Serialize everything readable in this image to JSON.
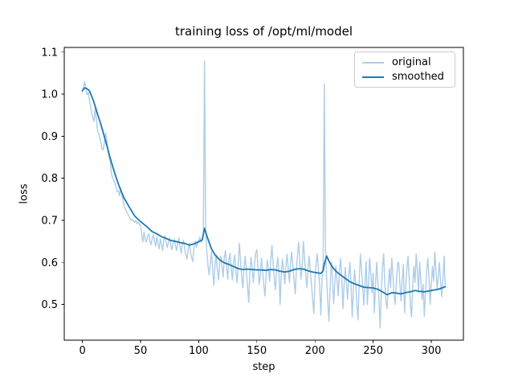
{
  "chart_data": {
    "type": "line",
    "title": "training loss of /opt/ml/model",
    "xlabel": "step",
    "ylabel": "loss",
    "xlim": [
      -15.6,
      327.6
    ],
    "ylim": [
      0.415,
      1.111
    ],
    "xticks": [
      0,
      50,
      100,
      150,
      200,
      250,
      300
    ],
    "xtick_labels": [
      "0",
      "50",
      "100",
      "150",
      "200",
      "250",
      "300"
    ],
    "yticks": [
      0.5,
      0.6,
      0.7,
      0.8,
      0.9,
      1.0,
      1.1
    ],
    "ytick_labels": [
      "0.5",
      "0.6",
      "0.7",
      "0.8",
      "0.9",
      "1.0",
      "1.1"
    ],
    "grid": false,
    "legend_position": "upper right",
    "background": "#ffffff",
    "spine_color": "#000000",
    "series": [
      {
        "name": "original",
        "color": "#aecde6",
        "line_width": 1.4,
        "x_start": 0,
        "x_step": 1,
        "y": [
          1.005,
          1.018,
          1.03,
          1.012,
          0.999,
          1.004,
          0.985,
          0.972,
          0.955,
          0.944,
          0.935,
          0.967,
          0.94,
          0.915,
          0.905,
          0.898,
          0.882,
          0.87,
          0.868,
          0.888,
          0.908,
          0.89,
          0.868,
          0.85,
          0.838,
          0.812,
          0.8,
          0.795,
          0.788,
          0.778,
          0.768,
          0.77,
          0.758,
          0.778,
          0.76,
          0.745,
          0.733,
          0.728,
          0.72,
          0.715,
          0.71,
          0.705,
          0.7,
          0.702,
          0.698,
          0.695,
          0.7,
          0.692,
          0.696,
          0.69,
          0.688,
          0.666,
          0.649,
          0.672,
          0.655,
          0.648,
          0.662,
          0.668,
          0.652,
          0.642,
          0.656,
          0.666,
          0.65,
          0.638,
          0.661,
          0.645,
          0.632,
          0.656,
          0.642,
          0.628,
          0.654,
          0.664,
          0.648,
          0.635,
          0.648,
          0.658,
          0.642,
          0.63,
          0.645,
          0.655,
          0.64,
          0.628,
          0.648,
          0.658,
          0.636,
          0.622,
          0.645,
          0.652,
          0.632,
          0.618,
          0.608,
          0.632,
          0.645,
          0.625,
          0.61,
          0.602,
          0.638,
          0.65,
          0.635,
          0.645,
          0.652,
          0.66,
          0.648,
          0.655,
          0.668,
          1.079,
          0.672,
          0.625,
          0.592,
          0.57,
          0.6,
          0.625,
          0.585,
          0.545,
          0.592,
          0.618,
          0.585,
          0.558,
          0.595,
          0.615,
          0.59,
          0.565,
          0.612,
          0.628,
          0.588,
          0.56,
          0.606,
          0.622,
          0.585,
          0.558,
          0.602,
          0.618,
          0.58,
          0.552,
          0.598,
          0.645,
          0.602,
          0.565,
          0.54,
          0.588,
          0.615,
          0.578,
          0.542,
          0.505,
          0.578,
          0.612,
          0.585,
          0.552,
          0.596,
          0.622,
          0.63,
          0.588,
          0.548,
          0.572,
          0.61,
          0.578,
          0.546,
          0.52,
          0.575,
          0.605,
          0.582,
          0.555,
          0.608,
          0.64,
          0.595,
          0.56,
          0.535,
          0.585,
          0.612,
          0.575,
          0.5,
          0.57,
          0.608,
          0.582,
          0.548,
          0.59,
          0.62,
          0.585,
          0.552,
          0.6,
          0.625,
          0.59,
          0.558,
          0.525,
          0.582,
          0.618,
          0.648,
          0.6,
          0.56,
          0.592,
          0.65,
          0.612,
          0.572,
          0.54,
          0.585,
          0.615,
          0.578,
          0.545,
          0.512,
          0.478,
          0.56,
          0.6,
          0.62,
          0.58,
          0.545,
          0.475,
          0.558,
          0.595,
          1.024,
          0.64,
          0.56,
          0.505,
          0.46,
          0.54,
          0.6,
          0.568,
          0.502,
          0.548,
          0.592,
          0.556,
          0.52,
          0.578,
          0.61,
          0.565,
          0.49,
          0.545,
          0.588,
          0.552,
          0.512,
          0.565,
          0.6,
          0.548,
          0.47,
          0.535,
          0.582,
          0.55,
          0.5,
          0.463,
          0.552,
          0.62,
          0.585,
          0.54,
          0.498,
          0.555,
          0.602,
          0.5,
          0.548,
          0.61,
          0.572,
          0.528,
          0.575,
          0.48,
          0.542,
          0.6,
          0.558,
          0.512,
          0.444,
          0.53,
          0.588,
          0.62,
          0.552,
          0.505,
          0.49,
          0.545,
          0.585,
          0.54,
          0.61,
          0.572,
          0.52,
          0.5,
          0.555,
          0.598,
          0.6,
          0.548,
          0.508,
          0.56,
          0.595,
          0.48,
          0.542,
          0.586,
          0.615,
          0.558,
          0.5,
          0.47,
          0.545,
          0.59,
          0.552,
          0.62,
          0.58,
          0.528,
          0.6,
          0.56,
          0.512,
          0.548,
          0.472,
          0.53,
          0.578,
          0.61,
          0.565,
          0.5,
          0.548,
          0.59,
          0.555,
          0.625,
          0.582,
          0.535,
          0.568,
          0.6,
          0.552,
          0.518,
          0.56,
          0.615,
          0.54
        ]
      },
      {
        "name": "smoothed",
        "color": "#1f77b4",
        "line_width": 1.8,
        "points": [
          [
            0,
            1.008
          ],
          [
            2,
            1.015
          ],
          [
            4,
            1.013
          ],
          [
            6,
            1.008
          ],
          [
            8,
            0.995
          ],
          [
            10,
            0.98
          ],
          [
            13,
            0.953
          ],
          [
            16,
            0.927
          ],
          [
            20,
            0.888
          ],
          [
            24,
            0.847
          ],
          [
            28,
            0.81
          ],
          [
            32,
            0.778
          ],
          [
            36,
            0.752
          ],
          [
            40,
            0.733
          ],
          [
            45,
            0.71
          ],
          [
            50,
            0.697
          ],
          [
            55,
            0.686
          ],
          [
            60,
            0.673
          ],
          [
            64,
            0.668
          ],
          [
            68,
            0.661
          ],
          [
            72,
            0.657
          ],
          [
            76,
            0.652
          ],
          [
            80,
            0.65
          ],
          [
            84,
            0.647
          ],
          [
            88,
            0.645
          ],
          [
            92,
            0.641
          ],
          [
            96,
            0.644
          ],
          [
            100,
            0.649
          ],
          [
            103,
            0.653
          ],
          [
            105,
            0.681
          ],
          [
            106,
            0.672
          ],
          [
            108,
            0.655
          ],
          [
            111,
            0.632
          ],
          [
            114,
            0.618
          ],
          [
            118,
            0.606
          ],
          [
            122,
            0.599
          ],
          [
            126,
            0.595
          ],
          [
            130,
            0.59
          ],
          [
            134,
            0.585
          ],
          [
            138,
            0.583
          ],
          [
            142,
            0.584
          ],
          [
            146,
            0.583
          ],
          [
            150,
            0.582
          ],
          [
            154,
            0.582
          ],
          [
            158,
            0.581
          ],
          [
            162,
            0.583
          ],
          [
            166,
            0.582
          ],
          [
            170,
            0.579
          ],
          [
            174,
            0.577
          ],
          [
            178,
            0.579
          ],
          [
            182,
            0.583
          ],
          [
            186,
            0.585
          ],
          [
            190,
            0.584
          ],
          [
            194,
            0.58
          ],
          [
            198,
            0.577
          ],
          [
            202,
            0.575
          ],
          [
            205,
            0.574
          ],
          [
            207,
            0.58
          ],
          [
            208,
            0.596
          ],
          [
            210,
            0.615
          ],
          [
            212,
            0.603
          ],
          [
            215,
            0.589
          ],
          [
            218,
            0.579
          ],
          [
            222,
            0.57
          ],
          [
            226,
            0.562
          ],
          [
            230,
            0.554
          ],
          [
            234,
            0.549
          ],
          [
            238,
            0.545
          ],
          [
            242,
            0.541
          ],
          [
            246,
            0.54
          ],
          [
            250,
            0.539
          ],
          [
            254,
            0.536
          ],
          [
            258,
            0.53
          ],
          [
            262,
            0.523
          ],
          [
            266,
            0.528
          ],
          [
            270,
            0.527
          ],
          [
            274,
            0.525
          ],
          [
            278,
            0.528
          ],
          [
            282,
            0.53
          ],
          [
            286,
            0.533
          ],
          [
            290,
            0.531
          ],
          [
            294,
            0.53
          ],
          [
            298,
            0.532
          ],
          [
            302,
            0.534
          ],
          [
            306,
            0.536
          ],
          [
            310,
            0.54
          ],
          [
            312,
            0.542
          ]
        ]
      }
    ],
    "legend": {
      "items": [
        {
          "label": "original"
        },
        {
          "label": "smoothed"
        }
      ]
    }
  }
}
